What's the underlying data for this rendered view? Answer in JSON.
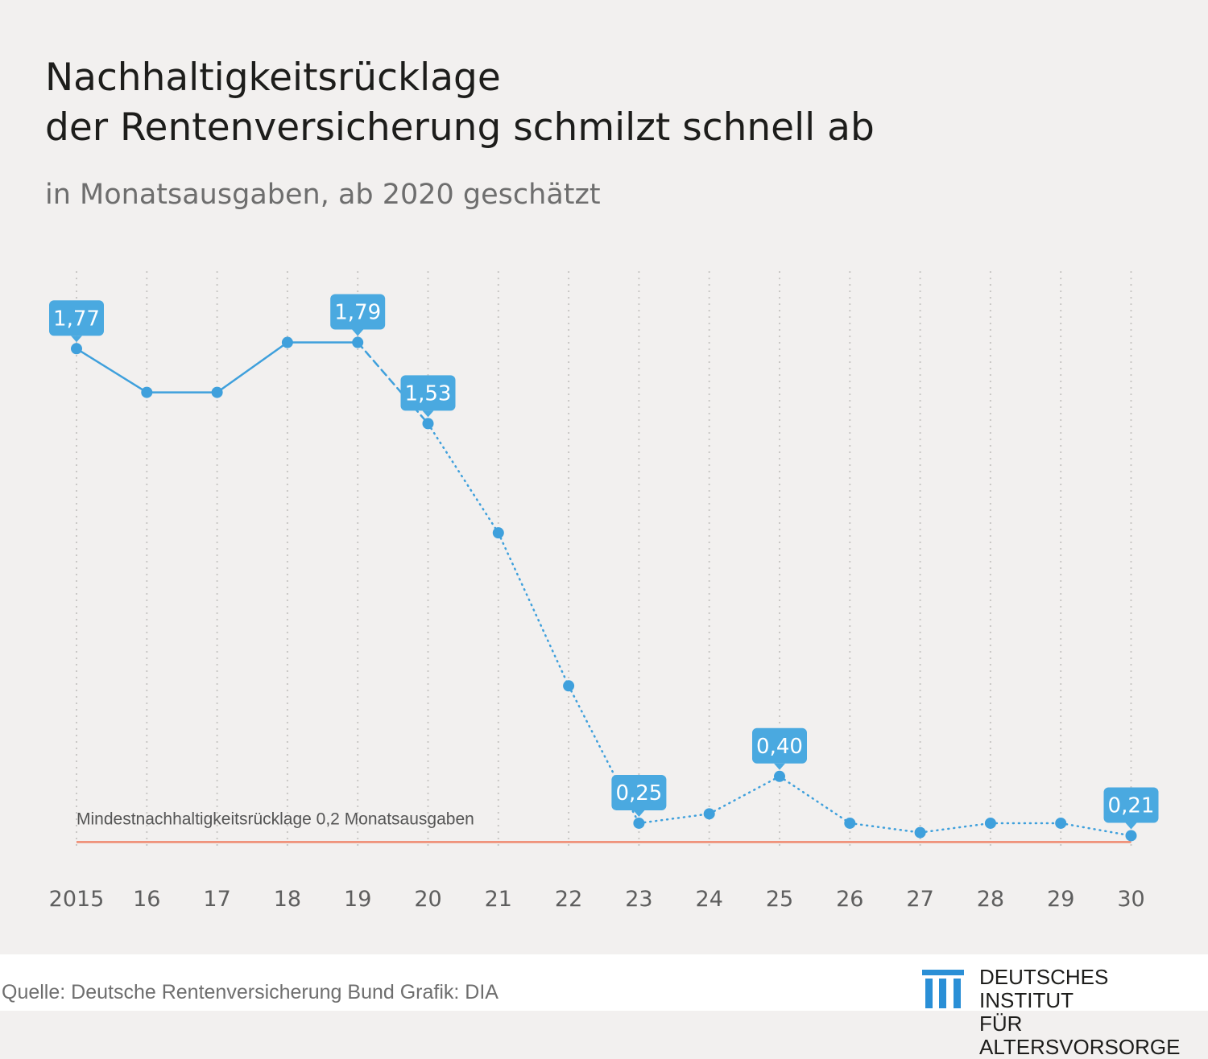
{
  "header": {
    "title_line1": "Nachhaltigkeitsrücklage",
    "title_line2": "der Rentenversicherung schmilzt schnell ab",
    "subtitle": "in Monatsausgaben, ab 2020 geschätzt"
  },
  "chart_data": {
    "type": "line",
    "title": "Nachhaltigkeitsrücklage der Rentenversicherung schmilzt schnell ab",
    "subtitle": "in Monatsausgaben, ab 2020 geschätzt",
    "categories": [
      "2015",
      "16",
      "17",
      "18",
      "19",
      "20",
      "21",
      "22",
      "23",
      "24",
      "25",
      "26",
      "27",
      "28",
      "29",
      "30"
    ],
    "values": [
      1.77,
      1.63,
      1.63,
      1.79,
      1.79,
      1.53,
      1.18,
      0.69,
      0.25,
      0.28,
      0.4,
      0.25,
      0.22,
      0.25,
      0.25,
      0.21
    ],
    "labels": [
      {
        "index": 0,
        "text": "1,77"
      },
      {
        "index": 4,
        "text": "1,79"
      },
      {
        "index": 5,
        "text": "1,53"
      },
      {
        "index": 8,
        "text": "0,25"
      },
      {
        "index": 10,
        "text": "0,40"
      },
      {
        "index": 15,
        "text": "0,21"
      }
    ],
    "segments": {
      "solid_until": 4,
      "dashed_until": 5,
      "dotted_from": 5
    },
    "reference_line": {
      "value": 0.2,
      "label": "Mindestnachhaltigkeitsrücklage 0,2 Monatsausgaben",
      "color": "#ef8a6f"
    },
    "ylim": [
      0.17,
      1.83
    ],
    "grid": "vertical dotted",
    "colors": {
      "series": "#3fa0dc",
      "label_box": "#4aa9e0",
      "label_text": "#ffffff",
      "grid": "#c9c7c5",
      "tick": "#5e5e5e"
    }
  },
  "footer": {
    "source": "Quelle: Deutsche Rentenversicherung Bund  Grafik: DIA",
    "logo_line1": "DEUTSCHES INSTITUT",
    "logo_line2": "FÜR ALTERSVORSORGE",
    "logo_icon": "columns-logo-icon"
  }
}
